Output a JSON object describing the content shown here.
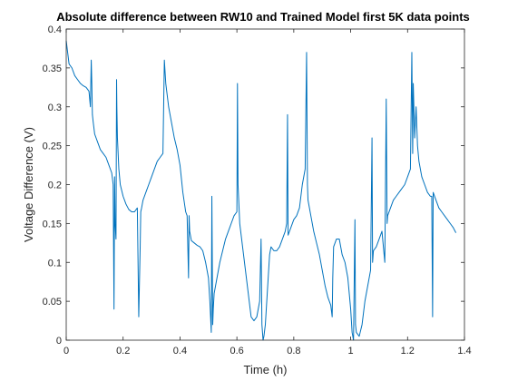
{
  "chart_data": {
    "type": "line",
    "title": "Absolute difference between RW10 and Trained Model first 5K data points",
    "xlabel": "Time (h)",
    "ylabel": "Voltage Difference (V)",
    "xlim": [
      0,
      1.4
    ],
    "ylim": [
      0,
      0.4
    ],
    "xticks": [
      0,
      0.2,
      0.4,
      0.6,
      0.8,
      1,
      1.2,
      1.4
    ],
    "xtick_labels": [
      "0",
      "0.2",
      "0.4",
      "0.6",
      "0.8",
      "1",
      "1.2",
      "1.4"
    ],
    "yticks": [
      0,
      0.05,
      0.1,
      0.15,
      0.2,
      0.25,
      0.3,
      0.35,
      0.4
    ],
    "ytick_labels": [
      "0",
      "0.05",
      "0.1",
      "0.15",
      "0.2",
      "0.25",
      "0.3",
      "0.35",
      "0.4"
    ],
    "grid": false,
    "line_color": "#0072bd",
    "series": [
      {
        "x": [
          0.0,
          0.005,
          0.01,
          0.02,
          0.03,
          0.04,
          0.05,
          0.06,
          0.07,
          0.08,
          0.085,
          0.088,
          0.09,
          0.092,
          0.095,
          0.1,
          0.11,
          0.12,
          0.13,
          0.14,
          0.15,
          0.16,
          0.165,
          0.168,
          0.17,
          0.172,
          0.175,
          0.177,
          0.178,
          0.179,
          0.18,
          0.185,
          0.19,
          0.2,
          0.21,
          0.22,
          0.23,
          0.24,
          0.25,
          0.255,
          0.26,
          0.262,
          0.265,
          0.27,
          0.28,
          0.29,
          0.3,
          0.31,
          0.32,
          0.33,
          0.34,
          0.345,
          0.35,
          0.36,
          0.37,
          0.38,
          0.39,
          0.4,
          0.41,
          0.42,
          0.425,
          0.43,
          0.432,
          0.434,
          0.44,
          0.45,
          0.46,
          0.47,
          0.48,
          0.49,
          0.5,
          0.505,
          0.51,
          0.512,
          0.515,
          0.517,
          0.52,
          0.53,
          0.54,
          0.55,
          0.56,
          0.57,
          0.58,
          0.59,
          0.6,
          0.602,
          0.604,
          0.61,
          0.62,
          0.63,
          0.64,
          0.65,
          0.66,
          0.67,
          0.68,
          0.685,
          0.688,
          0.69,
          0.692,
          0.695,
          0.7,
          0.705,
          0.71,
          0.715,
          0.72,
          0.73,
          0.74,
          0.75,
          0.76,
          0.77,
          0.775,
          0.778,
          0.78,
          0.79,
          0.8,
          0.81,
          0.82,
          0.83,
          0.84,
          0.845,
          0.848,
          0.85,
          0.86,
          0.87,
          0.88,
          0.89,
          0.9,
          0.91,
          0.92,
          0.93,
          0.935,
          0.937,
          0.94,
          0.95,
          0.96,
          0.97,
          0.98,
          0.99,
          1.0,
          1.005,
          1.01,
          1.015,
          1.017,
          1.02,
          1.03,
          1.04,
          1.05,
          1.06,
          1.07,
          1.075,
          1.077,
          1.08,
          1.09,
          1.1,
          1.11,
          1.12,
          1.125,
          1.128,
          1.13,
          1.14,
          1.15,
          1.16,
          1.17,
          1.18,
          1.19,
          1.2,
          1.21,
          1.215,
          1.218,
          1.22,
          1.225,
          1.23,
          1.235,
          1.24,
          1.25,
          1.26,
          1.27,
          1.28,
          1.285,
          1.288,
          1.29,
          1.3,
          1.31,
          1.32,
          1.33,
          1.34,
          1.35,
          1.36,
          1.37
        ],
        "y": [
          0.385,
          0.37,
          0.355,
          0.35,
          0.34,
          0.335,
          0.33,
          0.327,
          0.325,
          0.32,
          0.3,
          0.36,
          0.33,
          0.29,
          0.28,
          0.265,
          0.255,
          0.245,
          0.24,
          0.235,
          0.225,
          0.215,
          0.2,
          0.04,
          0.21,
          0.15,
          0.13,
          0.335,
          0.3,
          0.28,
          0.26,
          0.22,
          0.2,
          0.185,
          0.175,
          0.168,
          0.165,
          0.165,
          0.17,
          0.03,
          0.12,
          0.165,
          0.17,
          0.18,
          0.19,
          0.2,
          0.21,
          0.22,
          0.23,
          0.235,
          0.24,
          0.36,
          0.33,
          0.3,
          0.28,
          0.26,
          0.245,
          0.225,
          0.19,
          0.165,
          0.16,
          0.08,
          0.16,
          0.14,
          0.128,
          0.125,
          0.122,
          0.12,
          0.115,
          0.1,
          0.08,
          0.05,
          0.01,
          0.185,
          0.02,
          0.04,
          0.06,
          0.08,
          0.1,
          0.115,
          0.13,
          0.14,
          0.15,
          0.16,
          0.165,
          0.33,
          0.2,
          0.15,
          0.12,
          0.09,
          0.06,
          0.03,
          0.025,
          0.03,
          0.05,
          0.13,
          0.02,
          0.01,
          0.0,
          0.005,
          0.02,
          0.05,
          0.08,
          0.11,
          0.12,
          0.115,
          0.115,
          0.12,
          0.13,
          0.14,
          0.15,
          0.29,
          0.135,
          0.145,
          0.155,
          0.16,
          0.17,
          0.2,
          0.22,
          0.37,
          0.2,
          0.18,
          0.16,
          0.14,
          0.125,
          0.11,
          0.09,
          0.07,
          0.055,
          0.045,
          0.03,
          0.08,
          0.12,
          0.13,
          0.13,
          0.11,
          0.1,
          0.08,
          0.04,
          0.01,
          0.0,
          0.155,
          0.02,
          0.01,
          0.005,
          0.02,
          0.05,
          0.07,
          0.09,
          0.26,
          0.1,
          0.115,
          0.12,
          0.13,
          0.14,
          0.1,
          0.31,
          0.15,
          0.16,
          0.17,
          0.18,
          0.185,
          0.19,
          0.195,
          0.2,
          0.21,
          0.22,
          0.37,
          0.24,
          0.33,
          0.26,
          0.3,
          0.25,
          0.23,
          0.21,
          0.2,
          0.19,
          0.185,
          0.185,
          0.03,
          0.19,
          0.18,
          0.17,
          0.165,
          0.16,
          0.155,
          0.15,
          0.145,
          0.138
        ]
      }
    ]
  }
}
